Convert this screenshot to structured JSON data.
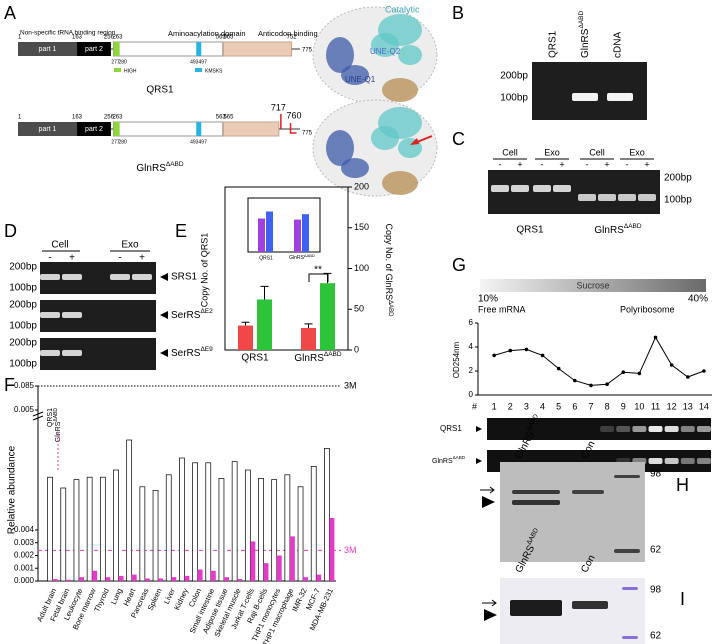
{
  "panel_labels": [
    "A",
    "B",
    "C",
    "D",
    "E",
    "F",
    "G",
    "H",
    "I"
  ],
  "gene": {
    "name": "GlnRS",
    "superscript": "ΔABD"
  },
  "domain_map": {
    "regions": [
      "Non-specific tRNA binding region",
      "Aminoacylation domain",
      "Anticodon binding domain"
    ],
    "parts": [
      "part 1",
      "part 2"
    ],
    "motifs": [
      "HIGH",
      "KMSKS"
    ],
    "full_name": "QRS1",
    "full_positions": [
      1,
      163,
      256,
      263,
      277,
      280,
      493,
      497,
      563,
      565,
      752,
      775
    ],
    "truncated_positions": [
      1,
      163,
      256,
      263,
      277,
      280,
      493,
      497,
      563,
      565,
      717,
      760,
      775
    ]
  },
  "structure_labels": [
    "Catalytic",
    "UNE-Q2",
    "UNE-Q1"
  ],
  "size_markers": [
    "200bp",
    "100bp"
  ],
  "gel_B": {
    "lanes": [
      "QRS1",
      "cDNA"
    ]
  },
  "gel_C": {
    "conditions": [
      "Cell",
      "Exo"
    ],
    "signs": [
      "-",
      "+"
    ],
    "group": "QRS1"
  },
  "gel_D": {
    "targets": [
      "SRS1",
      "SerRS",
      "SerRS"
    ],
    "target_superscripts": [
      "ΔE2",
      "ΔE9"
    ]
  },
  "blots": {
    "control": "Con",
    "mw": [
      98,
      62
    ]
  },
  "chart_data": [
    {
      "type": "bar",
      "categories": [
        "QRS1",
        "GlnRS"
      ],
      "series": [
        {
          "color": "#f04848",
          "values": [
            30,
            27
          ],
          "errors": [
            4,
            5
          ]
        },
        {
          "color": "#2ec43a",
          "values": [
            62,
            82
          ],
          "errors": [
            16,
            12
          ]
        }
      ],
      "ylim": [
        0,
        200
      ],
      "yticks": [
        0,
        50,
        100,
        150,
        200
      ],
      "ylabel": "Copy No. of QRS1",
      "y2label": "Copy No. of GlnRS",
      "annotation": "**",
      "inset": {
        "type": "bar",
        "categories": [
          "QRS1",
          "GlnRS"
        ],
        "series": [
          {
            "color": "#a040e0",
            "values": [
              0.62,
              0.6
            ]
          },
          {
            "color": "#4060f0",
            "values": [
              0.75,
              0.7
            ]
          }
        ],
        "ylim": [
          0,
          1
        ]
      }
    },
    {
      "type": "bar",
      "categories": [
        "Adult brain",
        "Fetal brain",
        "Leukocyte",
        "Bone marrow",
        "Thyroid",
        "Lung",
        "Heart",
        "Pancreas",
        "Spleen",
        "Liver",
        "Kidney",
        "Colon",
        "Small intestine",
        "Adipose tissue",
        "Skeletal muscle",
        "Jurkat T-cells",
        "Raji B-cells",
        "THP1 monocytes",
        "THP1 macrophage",
        "IMR-32",
        "MCF-7",
        "MDA-MB-231"
      ],
      "series": [
        {
          "name": "QRS1",
          "color": "#ffffff",
          "values": [
            0.00444,
            0.00435,
            0.00442,
            0.00444,
            0.00444,
            0.0045,
            0.00475,
            0.00436,
            0.00433,
            0.00446,
            0.0046,
            0.00456,
            0.00456,
            0.00443,
            0.00457,
            0.0045,
            0.00443,
            0.00442,
            0.00446,
            0.00436,
            0.00453,
            0.00468
          ]
        },
        {
          "name": "GlnRS",
          "color": "#e03cc8",
          "values": [
            0.00015,
            0.0001,
            0.0003,
            0.0008,
            0.0003,
            0.0004,
            0.0005,
            0.0002,
            0.0002,
            0.0003,
            0.0004,
            0.0009,
            0.0008,
            0.0003,
            0.00015,
            0.0031,
            0.0014,
            0.002,
            0.0035,
            0.0003,
            0.0005,
            0.0041
          ]
        }
      ],
      "ylim": [
        0,
        0.085
      ],
      "yticks": [
        {
          "value": 0,
          "label": "0.000"
        },
        {
          "value": 0.001,
          "label": "0.001"
        },
        {
          "value": 0.002,
          "label": "0.002"
        },
        {
          "value": 0.003,
          "label": "0.003"
        },
        {
          "value": 0.004,
          "label": "0.004"
        },
        {
          "value": 0.005,
          "label": "0.005"
        },
        {
          "value": 0.085,
          "label": "0.085"
        }
      ],
      "ylabel": "Relative abundance",
      "reference_lines": [
        {
          "value": 0.085,
          "label": "3M",
          "color": "#000000"
        },
        {
          "value": 0.0024,
          "label": "3M",
          "color": "#e03cc8"
        }
      ]
    },
    {
      "type": "line",
      "x": [
        1,
        2,
        3,
        4,
        5,
        6,
        7,
        8,
        9,
        10,
        11,
        12,
        13,
        14
      ],
      "values": [
        3.3,
        3.7,
        3.8,
        3.3,
        2.2,
        1.2,
        0.8,
        0.9,
        1.9,
        1.8,
        4.8,
        2.5,
        1.5,
        2.0
      ],
      "color": "#000000",
      "xlim": [
        0,
        14.5
      ],
      "ylim": [
        0,
        6
      ],
      "yticks": [
        0,
        2,
        4,
        6
      ],
      "ylabel": "OD254nm",
      "x_header": "#",
      "gradient": {
        "label": "Sucrose",
        "ends": [
          "10%",
          "40%"
        ],
        "fractions": [
          "Free mRNA",
          "Polyribosome"
        ]
      },
      "gels": [
        "QRS1"
      ]
    }
  ]
}
